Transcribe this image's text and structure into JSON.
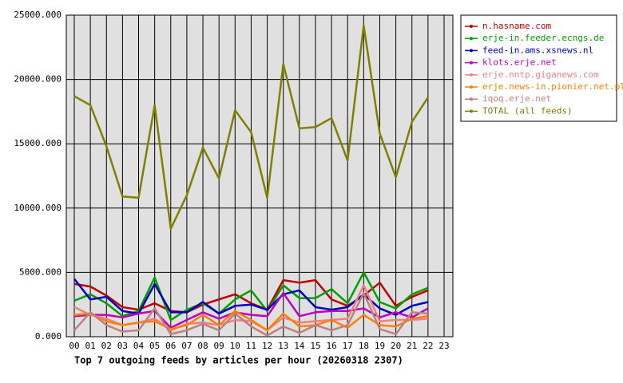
{
  "chart_data": {
    "type": "line",
    "title": "Top 7 outgoing feeds by articles per hour (20260318 2307)",
    "categories": [
      "00",
      "01",
      "02",
      "03",
      "04",
      "05",
      "06",
      "07",
      "08",
      "09",
      "10",
      "11",
      "12",
      "13",
      "14",
      "15",
      "16",
      "17",
      "18",
      "19",
      "20",
      "21",
      "22",
      "23"
    ],
    "ylim": [
      0,
      25000
    ],
    "yticks": [
      {
        "value": 0,
        "label": "0.000"
      },
      {
        "value": 5000,
        "label": "5000.000"
      },
      {
        "value": 10000,
        "label": "10000.000"
      },
      {
        "value": 15000,
        "label": "15000.000"
      },
      {
        "value": 20000,
        "label": "20000.000"
      },
      {
        "value": 25000,
        "label": "25000.000"
      }
    ],
    "grid": true,
    "legend": "right",
    "series": [
      {
        "name": "n.hasname.com",
        "color": "#c00000",
        "values": [
          4100,
          3900,
          3200,
          2300,
          2100,
          2600,
          2000,
          1900,
          2500,
          2900,
          3300,
          2600,
          2100,
          4400,
          4200,
          4400,
          2900,
          2400,
          3200,
          4200,
          2400,
          3100,
          3600,
          null
        ]
      },
      {
        "name": "erje-in.feeder.ecngs.de",
        "color": "#00a000",
        "values": [
          2800,
          3300,
          2600,
          1600,
          2000,
          4600,
          1300,
          2100,
          2600,
          1800,
          2900,
          3600,
          2000,
          4000,
          3000,
          3000,
          3700,
          2600,
          5000,
          2700,
          2200,
          3300,
          3800,
          null
        ]
      },
      {
        "name": "feed-in.ams.xsnews.nl",
        "color": "#0000c0",
        "values": [
          4500,
          2900,
          3100,
          2000,
          1800,
          4100,
          1900,
          1900,
          2700,
          1800,
          2400,
          2500,
          2100,
          3300,
          3600,
          2300,
          2100,
          2300,
          3300,
          2200,
          1700,
          2400,
          2700,
          null
        ]
      },
      {
        "name": "klots.erje.net",
        "color": "#c000c0",
        "values": [
          1600,
          1700,
          1700,
          1500,
          1800,
          2000,
          700,
          1300,
          1900,
          1400,
          1900,
          1700,
          1600,
          3400,
          1600,
          1900,
          2000,
          2000,
          2200,
          1500,
          1900,
          1500,
          2200,
          null
        ]
      },
      {
        "name": "erje.nntp.giganews.com",
        "color": "#f08080",
        "values": [
          2300,
          1700,
          1400,
          900,
          1100,
          1400,
          500,
          1000,
          1100,
          900,
          1300,
          1200,
          500,
          1500,
          1100,
          1200,
          1300,
          1400,
          4000,
          1200,
          1300,
          1300,
          1400,
          null
        ]
      },
      {
        "name": "erje.news-in.pionier.net.pl",
        "color": "#ff8000",
        "values": [
          1700,
          1800,
          1200,
          900,
          1100,
          1200,
          600,
          900,
          1700,
          900,
          2000,
          1300,
          500,
          1800,
          800,
          900,
          1300,
          700,
          1700,
          900,
          800,
          1400,
          1600,
          null
        ]
      },
      {
        "name": "iqoq.erje.net",
        "color": "#c08080",
        "values": [
          500,
          1900,
          900,
          400,
          500,
          2200,
          200,
          500,
          1000,
          500,
          1800,
          800,
          100,
          800,
          300,
          900,
          500,
          900,
          3400,
          600,
          200,
          1900,
          1800,
          null
        ]
      },
      {
        "name": "TOTAL (all feeds)",
        "color": "#808000",
        "values": [
          18700,
          18000,
          14800,
          10900,
          10800,
          18000,
          8400,
          11000,
          14700,
          12300,
          17600,
          15900,
          10800,
          21200,
          16200,
          16300,
          17000,
          13700,
          24200,
          15800,
          12400,
          16700,
          18600,
          null
        ]
      }
    ]
  }
}
